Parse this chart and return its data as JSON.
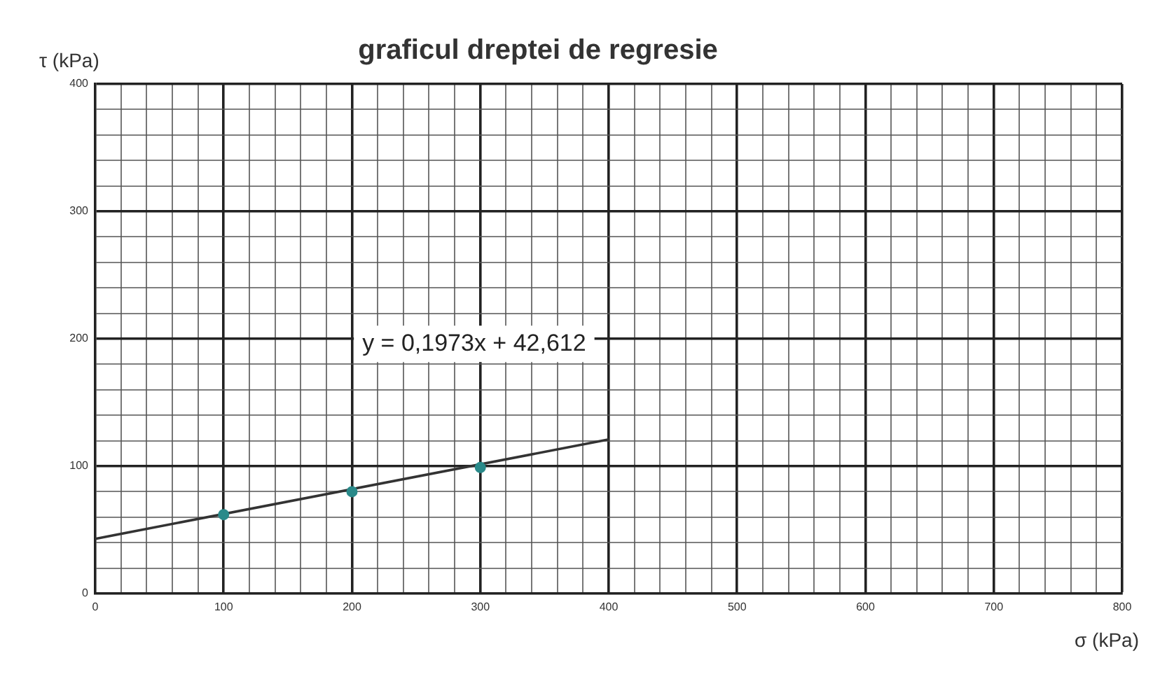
{
  "chart_data": {
    "type": "scatter",
    "title": "graficul dreptei de regresie",
    "xlabel": "σ (kPa)",
    "ylabel": "τ (kPa)",
    "series": [
      {
        "type": "scatter",
        "color": "#2a8a8a",
        "x": [
          100,
          200,
          300
        ],
        "values": [
          62,
          80,
          99
        ],
        "marker": "circle"
      },
      {
        "type": "line",
        "color": "#333333",
        "x": [
          0,
          400
        ],
        "values": [
          43,
          121
        ],
        "marker": "none",
        "line_style": "solid"
      }
    ],
    "annotations": [
      "y = 0,1973x + 42,612"
    ],
    "xlim": [
      0,
      800
    ],
    "ylim": [
      0,
      400
    ],
    "xticks": [
      0,
      {
        "value": 20,
        "label": null
      },
      {
        "value": 40,
        "label": null
      },
      {
        "value": 60,
        "label": null
      },
      {
        "value": 80,
        "label": null
      },
      100,
      {
        "value": 120,
        "label": null
      },
      {
        "value": 140,
        "label": null
      },
      {
        "value": 160,
        "label": null
      },
      {
        "value": 180,
        "label": null
      },
      200,
      {
        "value": 220,
        "label": null
      },
      {
        "value": 240,
        "label": null
      },
      {
        "value": 260,
        "label": null
      },
      {
        "value": 280,
        "label": null
      },
      300,
      {
        "value": 320,
        "label": null
      },
      {
        "value": 340,
        "label": null
      },
      {
        "value": 360,
        "label": null
      },
      {
        "value": 380,
        "label": null
      },
      400,
      {
        "value": 420,
        "label": null
      },
      {
        "value": 440,
        "label": null
      },
      {
        "value": 460,
        "label": null
      },
      {
        "value": 480,
        "label": null
      },
      500,
      {
        "value": 520,
        "label": null
      },
      {
        "value": 540,
        "label": null
      },
      {
        "value": 560,
        "label": null
      },
      {
        "value": 580,
        "label": null
      },
      600,
      {
        "value": 620,
        "label": null
      },
      {
        "value": 640,
        "label": null
      },
      {
        "value": 660,
        "label": null
      },
      {
        "value": 680,
        "label": null
      },
      700,
      {
        "value": 720,
        "label": null
      },
      {
        "value": 740,
        "label": null
      },
      {
        "value": 760,
        "label": null
      },
      {
        "value": 780,
        "label": null
      },
      800
    ],
    "yticks": [
      0,
      {
        "value": 20,
        "label": null
      },
      {
        "value": 40,
        "label": null
      },
      {
        "value": 60,
        "label": null
      },
      {
        "value": 80,
        "label": null
      },
      100,
      {
        "value": 120,
        "label": null
      },
      {
        "value": 140,
        "label": null
      },
      {
        "value": 160,
        "label": null
      },
      {
        "value": 180,
        "label": null
      },
      200,
      {
        "value": 220,
        "label": null
      },
      {
        "value": 240,
        "label": null
      },
      {
        "value": 260,
        "label": null
      },
      {
        "value": 280,
        "label": null
      },
      300,
      {
        "value": 320,
        "label": null
      },
      {
        "value": 340,
        "label": null
      },
      {
        "value": 360,
        "label": null
      },
      {
        "value": 380,
        "label": null
      },
      400
    ],
    "grid": true,
    "legend": false
  }
}
